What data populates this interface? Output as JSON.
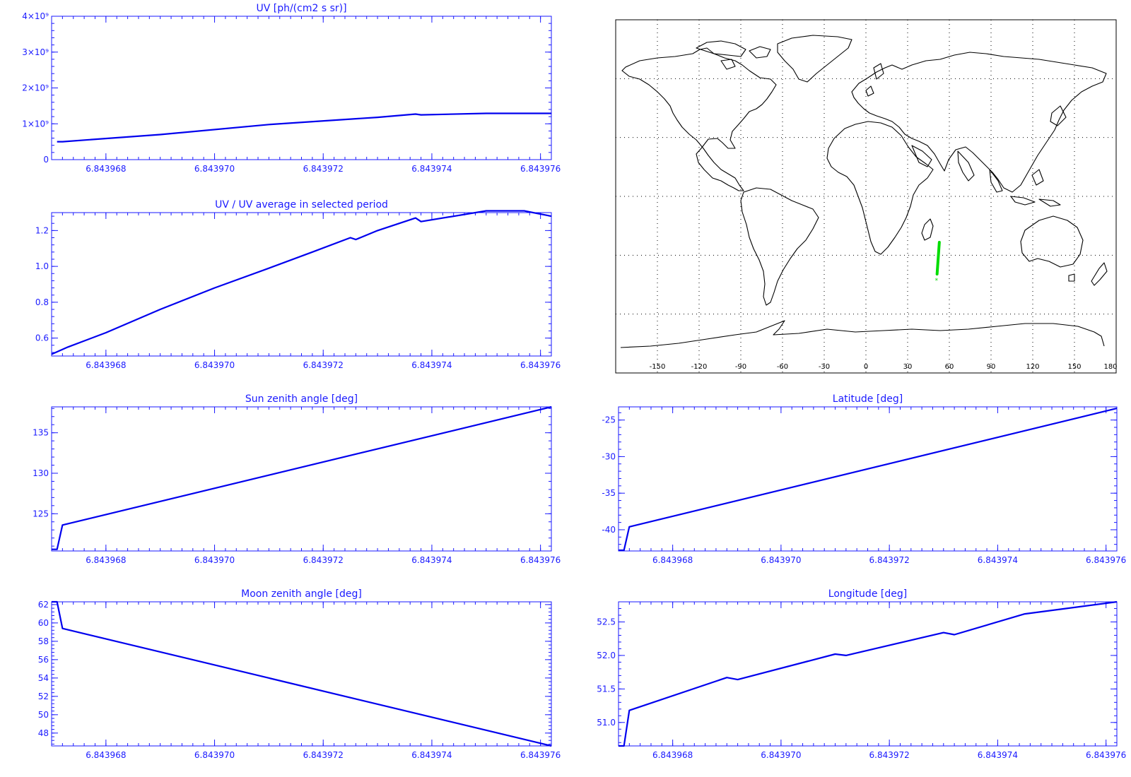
{
  "colors": {
    "axis": "#1a1aff",
    "line": "#0000ee",
    "track": "#00dd00",
    "map": "#000000",
    "grid": "#000000"
  },
  "map": {
    "xticks": [
      "-150",
      "-120",
      "-90",
      "-60",
      "-30",
      "0",
      "30",
      "60",
      "90",
      "120",
      "150",
      "180"
    ],
    "track": {
      "lon": [
        51.18,
        52.8
      ],
      "lat": [
        -39.6,
        -23.4
      ]
    }
  },
  "chart_data": [
    {
      "type": "line",
      "title": "UV [ph/(cm2 s sr)]",
      "x": [
        6.8439671,
        6.8439672,
        6.843969,
        6.843971,
        6.843973,
        6.8439737,
        6.8439738,
        6.843975,
        6.8439762
      ],
      "y": [
        500000000.0,
        500000000.0,
        700000000.0,
        980000000.0,
        1180000000.0,
        1270000000.0,
        1250000000.0,
        1290000000.0,
        1290000000.0
      ],
      "xlim": [
        6.843967,
        6.8439762
      ],
      "ylim": [
        0,
        4000000000.0
      ],
      "yticks": [
        "0",
        "1×10⁹",
        "2×10⁹",
        "3×10⁹",
        "4×10⁹"
      ],
      "xticks": [
        "6.843968",
        "6.843970",
        "6.843972",
        "6.843974",
        "6.843976"
      ]
    },
    {
      "type": "line",
      "title": "UV / UV average in selected period",
      "x": [
        6.843967,
        6.8439673,
        6.843968,
        6.843969,
        6.84397,
        6.843971,
        6.8439718,
        6.8439725,
        6.8439726,
        6.843973,
        6.8439737,
        6.8439738,
        6.843975,
        6.8439757,
        6.8439762
      ],
      "y": [
        0.51,
        0.55,
        0.63,
        0.76,
        0.88,
        0.99,
        1.08,
        1.16,
        1.15,
        1.2,
        1.27,
        1.25,
        1.31,
        1.31,
        1.28
      ],
      "xlim": [
        6.843967,
        6.8439762
      ],
      "ylim": [
        0.5,
        1.3
      ],
      "yticks": [
        "0.6",
        "0.8",
        "1.0",
        "1.2"
      ],
      "xticks": [
        "6.843968",
        "6.843970",
        "6.843972",
        "6.843974",
        "6.843976"
      ]
    },
    {
      "type": "line",
      "title": "Sun zenith angle [deg]",
      "x": [
        6.843967,
        6.8439671,
        6.8439672,
        6.8439762
      ],
      "y": [
        120.6,
        120.6,
        123.6,
        138.2
      ],
      "xlim": [
        6.843967,
        6.8439762
      ],
      "ylim": [
        120.4,
        138.2
      ],
      "yticks": [
        "125",
        "130",
        "135"
      ],
      "xticks": [
        "6.843968",
        "6.843970",
        "6.843972",
        "6.843974",
        "6.843976"
      ]
    },
    {
      "type": "line",
      "title": "Latitude [deg]",
      "x": [
        6.843967,
        6.8439671,
        6.8439672,
        6.8439762
      ],
      "y": [
        -42.8,
        -42.8,
        -39.6,
        -23.4
      ],
      "xlim": [
        6.843967,
        6.8439762
      ],
      "ylim": [
        -42.9,
        -23.2
      ],
      "yticks": [
        "-25",
        "-30",
        "-35",
        "-40"
      ],
      "xticks": [
        "6.843968",
        "6.843970",
        "6.843972",
        "6.843974",
        "6.843976"
      ]
    },
    {
      "type": "line",
      "title": "Moon zenith angle [deg]",
      "x": [
        6.843967,
        6.8439671,
        6.8439672,
        6.8439762
      ],
      "y": [
        62.3,
        62.3,
        59.4,
        46.6
      ],
      "xlim": [
        6.843967,
        6.8439762
      ],
      "ylim": [
        46.6,
        62.3
      ],
      "yticks": [
        "62",
        "60",
        "58",
        "56",
        "54",
        "52",
        "50",
        "48"
      ],
      "xticks": [
        "6.843968",
        "6.843970",
        "6.843972",
        "6.843974",
        "6.843976"
      ]
    },
    {
      "type": "line",
      "title": "Longitude [deg]",
      "x": [
        6.843967,
        6.8439671,
        6.8439672,
        6.843969,
        6.8439692,
        6.843971,
        6.8439712,
        6.843973,
        6.8439732,
        6.8439745,
        6.8439762
      ],
      "y": [
        50.65,
        50.65,
        51.18,
        51.67,
        51.64,
        52.02,
        52.0,
        52.34,
        52.31,
        52.62,
        52.8
      ],
      "xlim": [
        6.843967,
        6.8439762
      ],
      "ylim": [
        50.65,
        52.8
      ],
      "yticks": [
        "52.5",
        "52.0",
        "51.5",
        "51.0"
      ],
      "xticks": [
        "6.843968",
        "6.843970",
        "6.843972",
        "6.843974",
        "6.843976"
      ]
    }
  ]
}
